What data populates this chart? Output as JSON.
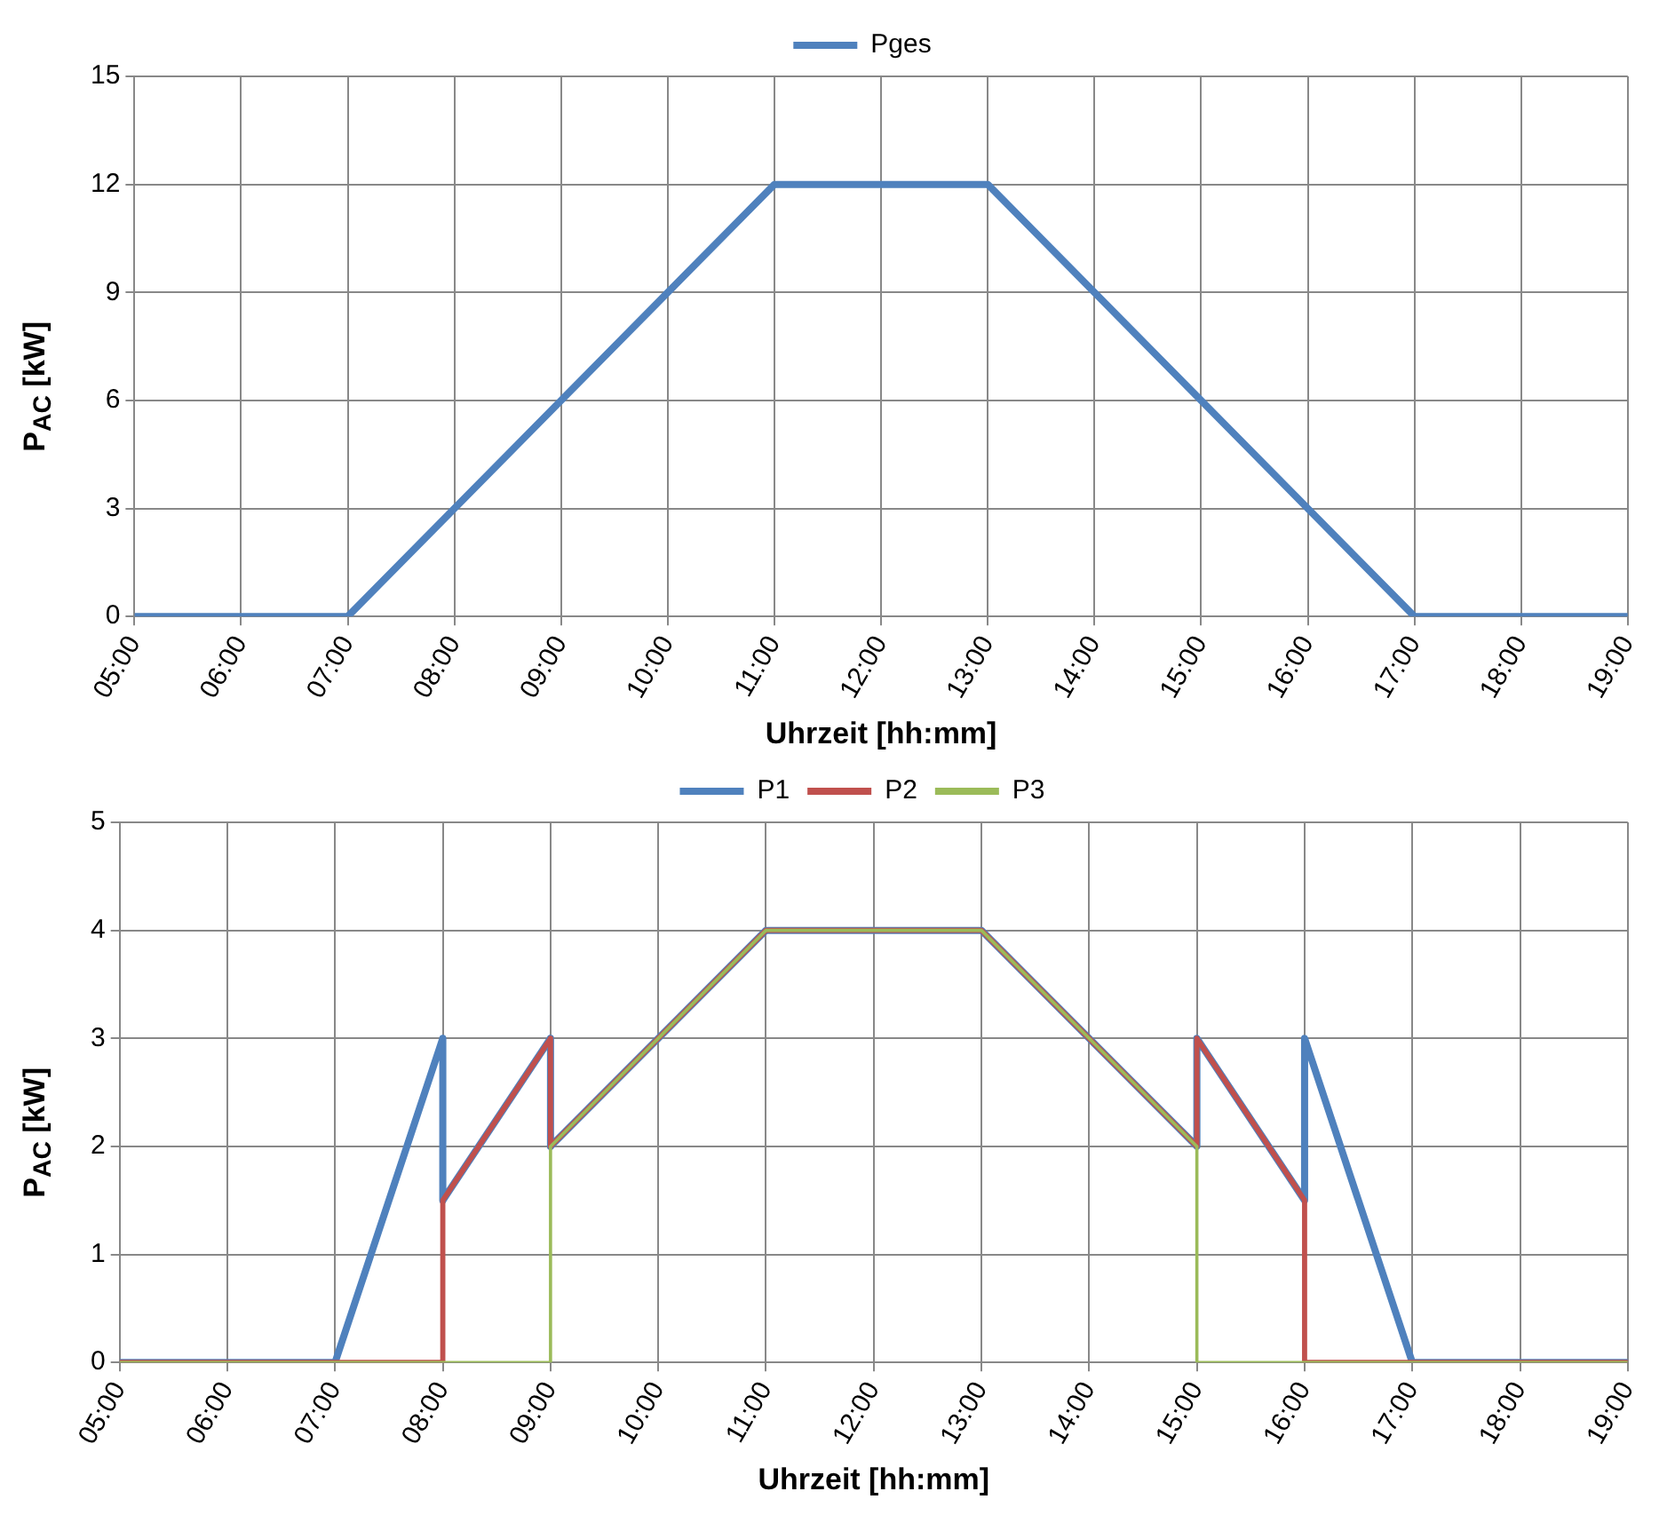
{
  "chart_data": [
    {
      "type": "line",
      "xlabel": "Uhrzeit [hh:mm]",
      "ylabel": "P$_{AC}$ [kW]",
      "xlim": [
        5,
        19
      ],
      "xticks": [
        {
          "value": 5,
          "label": "05:00"
        },
        {
          "value": 6,
          "label": "06:00"
        },
        {
          "value": 7,
          "label": "07:00"
        },
        {
          "value": 8,
          "label": "08:00"
        },
        {
          "value": 9,
          "label": "09:00"
        },
        {
          "value": 10,
          "label": "10:00"
        },
        {
          "value": 11,
          "label": "11:00"
        },
        {
          "value": 12,
          "label": "12:00"
        },
        {
          "value": 13,
          "label": "13:00"
        },
        {
          "value": 14,
          "label": "14:00"
        },
        {
          "value": 15,
          "label": "15:00"
        },
        {
          "value": 16,
          "label": "16:00"
        },
        {
          "value": 17,
          "label": "17:00"
        },
        {
          "value": 18,
          "label": "18:00"
        },
        {
          "value": 19,
          "label": "19:00"
        }
      ],
      "ylim": [
        0,
        15
      ],
      "yticks": [
        0,
        3,
        6,
        9,
        12,
        15
      ],
      "grid": true,
      "legend": "top",
      "marker": "none",
      "series": [
        {
          "name": "Pges",
          "color": "#4f81bd",
          "x": [
            5,
            7,
            11,
            13,
            17,
            19
          ],
          "values": [
            0,
            0,
            12,
            12,
            0,
            0
          ]
        }
      ]
    },
    {
      "type": "line",
      "xlabel": "Uhrzeit [hh:mm]",
      "ylabel": "P$_{AC}$ [kW]",
      "xlim": [
        5,
        19
      ],
      "xticks": [
        {
          "value": 5,
          "label": "05:00"
        },
        {
          "value": 6,
          "label": "06:00"
        },
        {
          "value": 7,
          "label": "07:00"
        },
        {
          "value": 8,
          "label": "08:00"
        },
        {
          "value": 9,
          "label": "09:00"
        },
        {
          "value": 10,
          "label": "10:00"
        },
        {
          "value": 11,
          "label": "11:00"
        },
        {
          "value": 12,
          "label": "12:00"
        },
        {
          "value": 13,
          "label": "13:00"
        },
        {
          "value": 14,
          "label": "14:00"
        },
        {
          "value": 15,
          "label": "15:00"
        },
        {
          "value": 16,
          "label": "16:00"
        },
        {
          "value": 17,
          "label": "17:00"
        },
        {
          "value": 18,
          "label": "18:00"
        },
        {
          "value": 19,
          "label": "19:00"
        }
      ],
      "ylim": [
        0,
        5
      ],
      "yticks": [
        0,
        1,
        2,
        3,
        4,
        5
      ],
      "grid": true,
      "legend": "top",
      "marker": "none",
      "series": [
        {
          "name": "P1",
          "color": "#4f81bd",
          "x": [
            5,
            7,
            8,
            8,
            9,
            9,
            11,
            13,
            15,
            15,
            16,
            16,
            17,
            19
          ],
          "values": [
            0,
            0,
            3,
            1.5,
            3,
            2,
            4,
            4,
            2,
            3,
            1.5,
            3,
            0,
            0
          ]
        },
        {
          "name": "P2",
          "color": "#c0504d",
          "x": [
            5,
            8,
            8,
            9,
            9,
            11,
            13,
            15,
            15,
            16,
            16,
            19
          ],
          "values": [
            0,
            0,
            1.5,
            3,
            2,
            4,
            4,
            2,
            3,
            1.5,
            0,
            0
          ]
        },
        {
          "name": "P3",
          "color": "#9bbb59",
          "x": [
            5,
            9,
            9,
            11,
            13,
            15,
            15,
            19
          ],
          "values": [
            0,
            0,
            2,
            4,
            4,
            2,
            0,
            0
          ]
        }
      ]
    }
  ]
}
